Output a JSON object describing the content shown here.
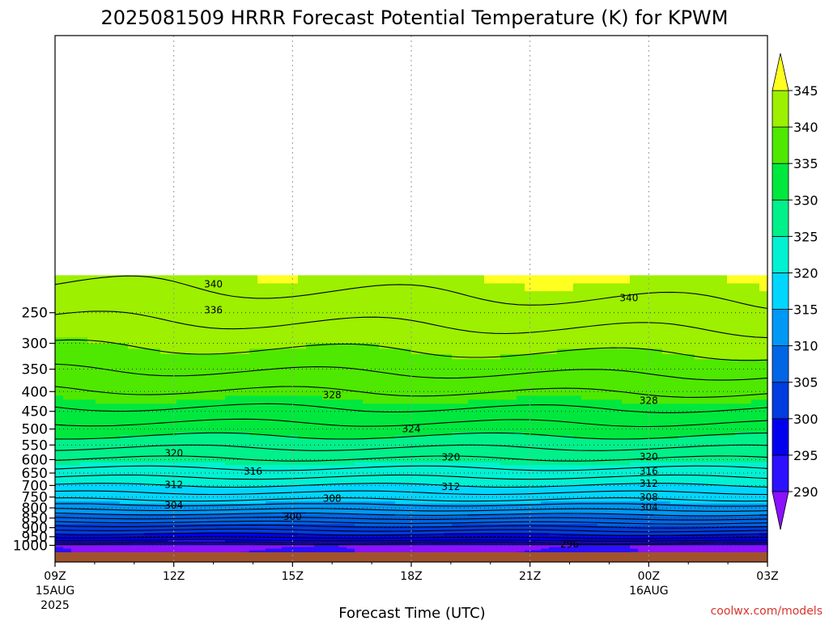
{
  "chart_data": {
    "type": "heatmap",
    "title": "2025081509 HRRR Forecast Potential Temperature (K) for KPWM",
    "xlabel": "Forecast Time (UTC)",
    "ylabel": "",
    "x_ticks": [
      {
        "label": "09Z",
        "sub": [
          "15AUG",
          "2025"
        ]
      },
      {
        "label": "12Z",
        "sub": []
      },
      {
        "label": "15Z",
        "sub": []
      },
      {
        "label": "18Z",
        "sub": []
      },
      {
        "label": "21Z",
        "sub": []
      },
      {
        "label": "00Z",
        "sub": [
          "16AUG"
        ]
      },
      {
        "label": "03Z",
        "sub": []
      }
    ],
    "x_hours": [
      0,
      3,
      6,
      9,
      12,
      15,
      18
    ],
    "y_ticks": [
      250,
      300,
      350,
      400,
      450,
      500,
      550,
      600,
      650,
      700,
      750,
      800,
      850,
      900,
      950,
      1000
    ],
    "ylim": [
      200,
      1050
    ],
    "y_scale": "log-pressure (inverted)",
    "grid": true,
    "colorbar": {
      "levels": [
        290,
        295,
        300,
        305,
        310,
        315,
        320,
        325,
        330,
        335,
        340,
        345
      ],
      "colors": [
        "#8a12ff",
        "#2b11ff",
        "#0000ee",
        "#003ce0",
        "#0066e6",
        "#0098f5",
        "#00d6ff",
        "#00f2d2",
        "#00f08a",
        "#00e83e",
        "#4fe800",
        "#9cf000",
        "#d8f000",
        "#ffff22"
      ],
      "under_color": "#8a12ff",
      "over_color": "#ffff22"
    },
    "contour_labels": [
      {
        "value": "340",
        "hour": 4.0,
        "p": 211
      },
      {
        "value": "340",
        "hour": 14.5,
        "p": 229
      },
      {
        "value": "336",
        "hour": 4.0,
        "p": 246
      },
      {
        "value": "328",
        "hour": 7.0,
        "p": 408
      },
      {
        "value": "328",
        "hour": 15.0,
        "p": 422
      },
      {
        "value": "324",
        "hour": 9.0,
        "p": 500
      },
      {
        "value": "320",
        "hour": 3.0,
        "p": 577
      },
      {
        "value": "320",
        "hour": 10.0,
        "p": 592
      },
      {
        "value": "320",
        "hour": 15.0,
        "p": 590
      },
      {
        "value": "316",
        "hour": 5.0,
        "p": 643
      },
      {
        "value": "316",
        "hour": 15.0,
        "p": 643
      },
      {
        "value": "312",
        "hour": 3.0,
        "p": 697
      },
      {
        "value": "312",
        "hour": 10.0,
        "p": 706
      },
      {
        "value": "312",
        "hour": 15.0,
        "p": 692
      },
      {
        "value": "308",
        "hour": 7.0,
        "p": 756
      },
      {
        "value": "308",
        "hour": 15.0,
        "p": 751
      },
      {
        "value": "304",
        "hour": 3.0,
        "p": 788
      },
      {
        "value": "304",
        "hour": 15.0,
        "p": 798
      },
      {
        "value": "300",
        "hour": 6.0,
        "p": 843
      },
      {
        "value": "296",
        "hour": 13.0,
        "p": 993
      }
    ],
    "surface_color": "#a0522d"
  },
  "credit": "coolwx.com/models"
}
